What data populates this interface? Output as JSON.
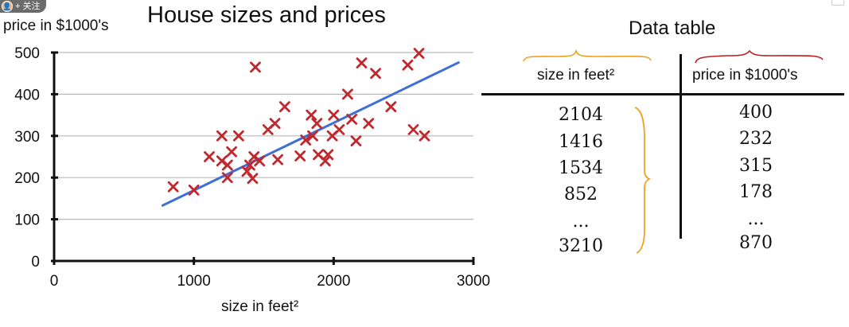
{
  "overlay": {
    "avatar_label": "👤",
    "follow_label": "+ 关注"
  },
  "chart_data": {
    "type": "scatter",
    "title": "House sizes and prices",
    "xlabel": "size in feet²",
    "ylabel": "price in $1000's",
    "xlim": [
      0,
      3000
    ],
    "ylim": [
      0,
      500
    ],
    "xticks": [
      0,
      1000,
      2000,
      3000
    ],
    "yticks": [
      0,
      100,
      200,
      300,
      400,
      500
    ],
    "grid": true,
    "marker_color": "#c0282d",
    "fit_color": "#3f6fd6",
    "points": [
      [
        852,
        178
      ],
      [
        1000,
        170
      ],
      [
        1110,
        250
      ],
      [
        1200,
        300
      ],
      [
        1200,
        240
      ],
      [
        1240,
        230
      ],
      [
        1240,
        200
      ],
      [
        1270,
        262
      ],
      [
        1320,
        300
      ],
      [
        1380,
        215
      ],
      [
        1400,
        230
      ],
      [
        1420,
        198
      ],
      [
        1430,
        250
      ],
      [
        1440,
        465
      ],
      [
        1470,
        240
      ],
      [
        1530,
        315
      ],
      [
        1580,
        330
      ],
      [
        1600,
        243
      ],
      [
        1650,
        370
      ],
      [
        1760,
        252
      ],
      [
        1800,
        290
      ],
      [
        1840,
        350
      ],
      [
        1850,
        300
      ],
      [
        1880,
        330
      ],
      [
        1890,
        255
      ],
      [
        1940,
        240
      ],
      [
        1960,
        255
      ],
      [
        1990,
        300
      ],
      [
        2000,
        350
      ],
      [
        2040,
        315
      ],
      [
        2100,
        400
      ],
      [
        2130,
        340
      ],
      [
        2160,
        288
      ],
      [
        2200,
        475
      ],
      [
        2250,
        330
      ],
      [
        2300,
        450
      ],
      [
        2410,
        370
      ],
      [
        2530,
        470
      ],
      [
        2570,
        315
      ],
      [
        2610,
        498
      ],
      [
        2650,
        300
      ]
    ],
    "fit_line": [
      [
        770,
        132
      ],
      [
        2900,
        477
      ]
    ]
  },
  "table": {
    "title": "Data table",
    "col1_header": "size in feet²",
    "col2_header": "price in $1000's",
    "rows": [
      {
        "size": "2104",
        "price": "400"
      },
      {
        "size": "1416",
        "price": "232"
      },
      {
        "size": "1534",
        "price": "315"
      },
      {
        "size": "852",
        "price": "178"
      },
      {
        "size": "...",
        "price": "..."
      },
      {
        "size": "3210",
        "price": "870"
      }
    ],
    "brace_color": "#f0a11f",
    "header_brace_left_color": "#f0a11f",
    "header_brace_right_color": "#b82020"
  }
}
